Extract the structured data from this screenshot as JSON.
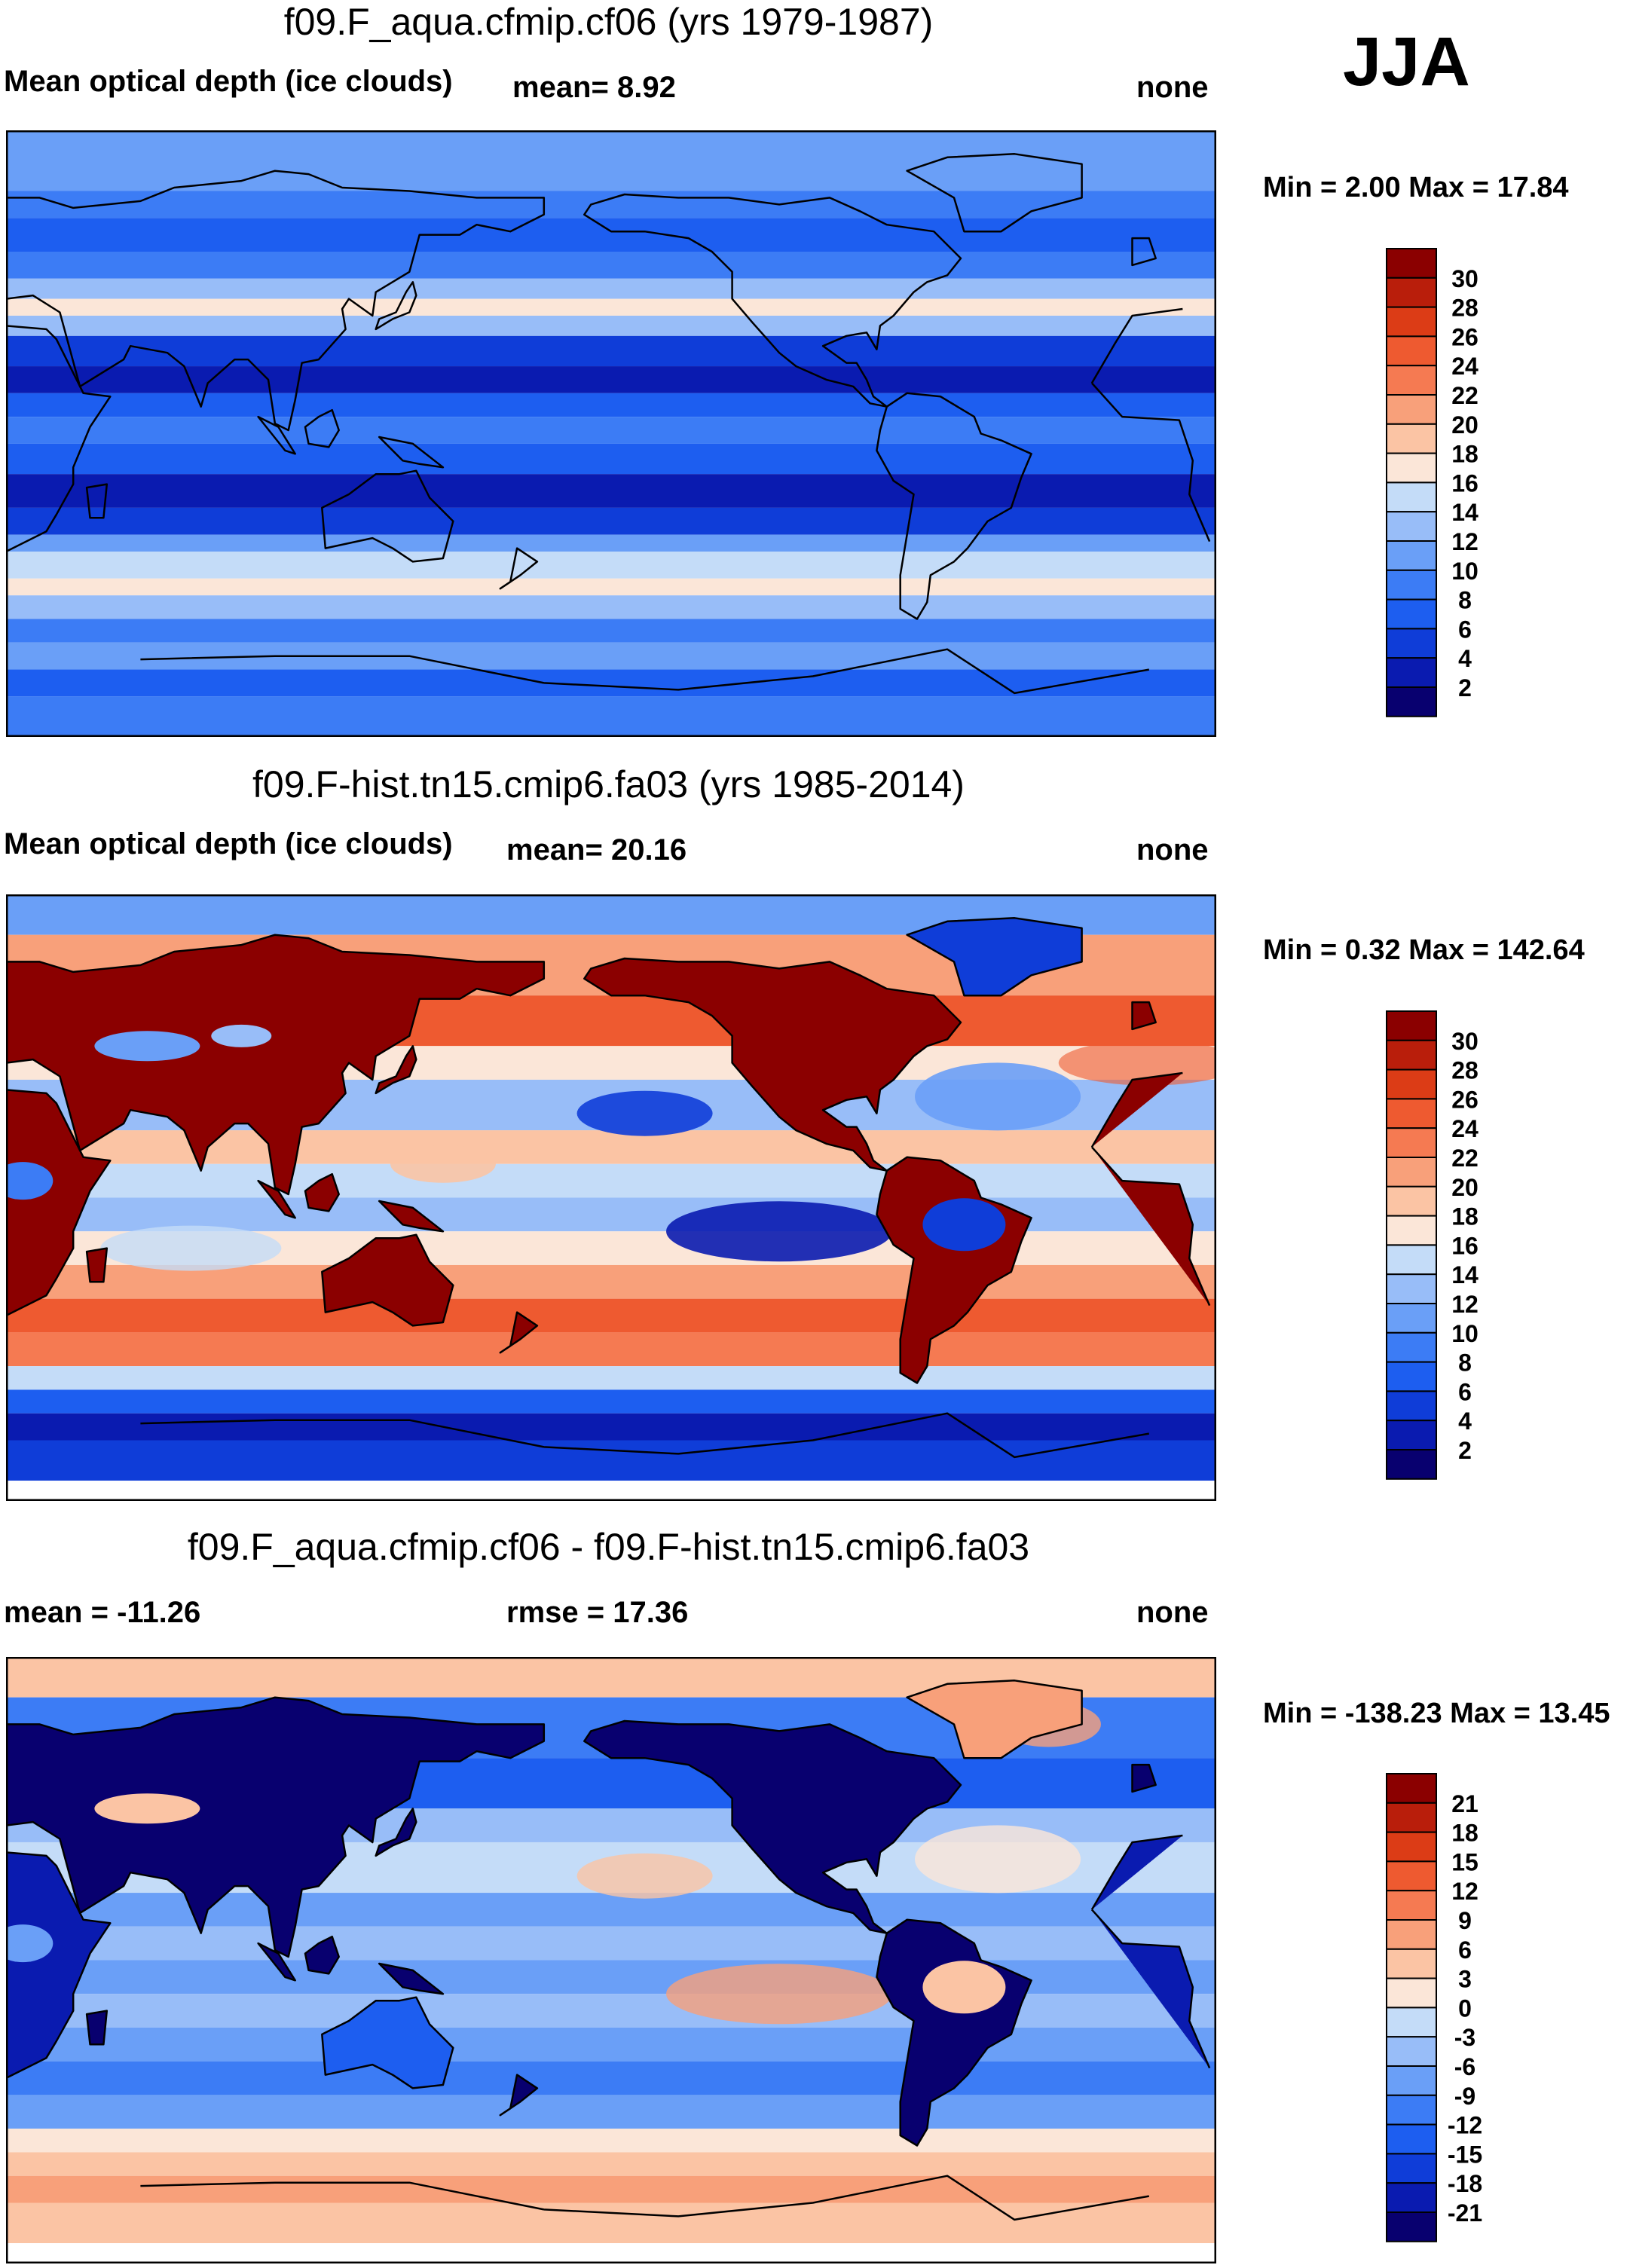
{
  "season": "JJA",
  "colors": {
    "seq": [
      "#08006f",
      "#0a1bb0",
      "#0f3dd8",
      "#1d5ef0",
      "#3c7cf5",
      "#6a9ff7",
      "#98bdf8",
      "#c4dcf8",
      "#fbe6d8",
      "#fbc4a4",
      "#f8a07a",
      "#f57a52",
      "#ee5a30",
      "#dc3c16",
      "#b91e0b",
      "#8b0000"
    ],
    "diverging": [
      "#08006f",
      "#0a1bb0",
      "#0f3dd8",
      "#1d5ef0",
      "#3c7cf5",
      "#6a9ff7",
      "#98bdf8",
      "#c4dcf8",
      "#fbe6d8",
      "#fbc4a4",
      "#f8a07a",
      "#f57a52",
      "#ee5a30",
      "#dc3c16",
      "#b91e0b",
      "#8b0000"
    ],
    "coast": "#000000"
  },
  "chart_data": [
    {
      "type": "heatmap",
      "title": "f09.F_aqua.cfmip.cf06 (yrs 1979-1987)",
      "left_label": "Mean optical depth (ice clouds)",
      "center_label": "mean=   8.92",
      "right_label": "none",
      "minmax_label": "Min =   2.00 Max =  17.84",
      "min": 2.0,
      "max": 17.84,
      "mean": 8.92,
      "colorbar_ticks": [
        "30",
        "28",
        "26",
        "24",
        "22",
        "20",
        "18",
        "16",
        "14",
        "12",
        "10",
        "8",
        "6",
        "4",
        "2"
      ],
      "pattern": "zonal-bands"
    },
    {
      "type": "heatmap",
      "title": "f09.F-hist.tn15.cmip6.fa03 (yrs 1985-2014)",
      "left_label": "Mean optical depth (ice clouds)",
      "center_label": "mean=  20.16",
      "right_label": "none",
      "minmax_label": "Min =   0.32 Max = 142.64",
      "min": 0.32,
      "max": 142.64,
      "mean": 20.16,
      "colorbar_ticks": [
        "30",
        "28",
        "26",
        "24",
        "22",
        "20",
        "18",
        "16",
        "14",
        "12",
        "10",
        "8",
        "6",
        "4",
        "2"
      ],
      "pattern": "land-high"
    },
    {
      "type": "heatmap",
      "title": "f09.F_aqua.cfmip.cf06 - f09.F-hist.tn15.cmip6.fa03",
      "left_label": "mean = -11.26",
      "center_label": "rmse =  17.36",
      "right_label": "none",
      "minmax_label": "Min = -138.23 Max =  13.45",
      "min": -138.23,
      "max": 13.45,
      "mean": -11.26,
      "rmse": 17.36,
      "colorbar_ticks": [
        "21",
        "18",
        "15",
        "12",
        "9",
        "6",
        "3",
        "0",
        "-3",
        "-6",
        "-9",
        "-12",
        "-15",
        "-18",
        "-21"
      ],
      "pattern": "difference"
    }
  ]
}
